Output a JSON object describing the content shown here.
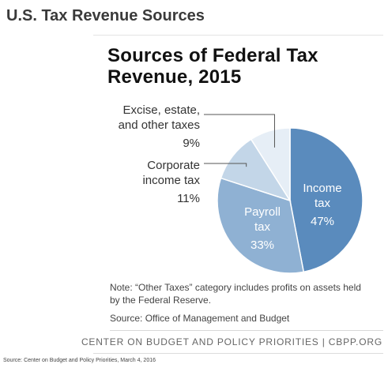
{
  "slide_title": "U.S. Tax Revenue Sources",
  "chart_data": {
    "type": "pie",
    "title_line1": "Sources of Federal Tax",
    "title_line2": "Revenue, 2015",
    "slices": [
      {
        "name": "Income tax",
        "name_lines": [
          "Income",
          "tax"
        ],
        "value": 47,
        "label": "47%",
        "color": "#5a8bbd"
      },
      {
        "name": "Payroll tax",
        "name_lines": [
          "Payroll",
          "tax"
        ],
        "value": 33,
        "label": "33%",
        "color": "#8fb1d3"
      },
      {
        "name": "Corporate income tax",
        "name_lines": [
          "Corporate",
          "income tax"
        ],
        "value": 11,
        "label": "11%",
        "color": "#c3d6e8"
      },
      {
        "name": "Excise, estate, and other taxes",
        "name_lines": [
          "Excise, estate,",
          "and other taxes"
        ],
        "value": 9,
        "label": "9%",
        "color": "#e6eef6"
      }
    ]
  },
  "note": "Note: “Other Taxes” category includes profits on assets held by the Federal Reserve.",
  "source": "Source: Office of Management and Budget",
  "footer_org": "CENTER ON BUDGET AND POLICY PRIORITIES | CBPP.ORG",
  "slide_source": "Source: Center on Budget and Policy Priorities, March 4, 2016"
}
